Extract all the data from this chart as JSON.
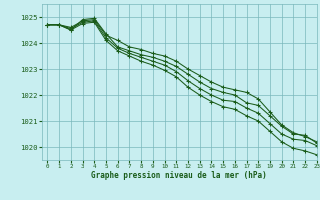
{
  "title": "Graphe pression niveau de la mer (hPa)",
  "bg_color": "#c8eef0",
  "grid_color": "#7ab8bc",
  "line_color": "#1a5c1a",
  "xlim": [
    -0.5,
    23
  ],
  "ylim": [
    1019.5,
    1025.5
  ],
  "yticks": [
    1020,
    1021,
    1022,
    1023,
    1024,
    1025
  ],
  "xticks": [
    0,
    1,
    2,
    3,
    4,
    5,
    6,
    7,
    8,
    9,
    10,
    11,
    12,
    13,
    14,
    15,
    16,
    17,
    18,
    19,
    20,
    21,
    22,
    23
  ],
  "series": [
    [
      1024.7,
      1024.7,
      1024.6,
      1024.85,
      1024.9,
      1024.3,
      1024.1,
      1023.85,
      1023.75,
      1023.6,
      1023.5,
      1023.3,
      1023.0,
      1022.75,
      1022.5,
      1022.3,
      1022.2,
      1022.1,
      1021.85,
      1021.35,
      1020.85,
      1020.55,
      1020.4,
      1020.2
    ],
    [
      1024.7,
      1024.7,
      1024.5,
      1024.9,
      1024.95,
      1024.35,
      1023.85,
      1023.7,
      1023.55,
      1023.45,
      1023.3,
      1023.1,
      1022.8,
      1022.5,
      1022.25,
      1022.1,
      1022.0,
      1021.7,
      1021.6,
      1021.2,
      1020.8,
      1020.5,
      1020.45,
      1020.15
    ],
    [
      1024.7,
      1024.7,
      1024.55,
      1024.8,
      1024.85,
      1024.2,
      1023.8,
      1023.6,
      1023.45,
      1023.3,
      1023.15,
      1022.9,
      1022.55,
      1022.25,
      1022.0,
      1021.8,
      1021.75,
      1021.5,
      1021.3,
      1020.9,
      1020.5,
      1020.3,
      1020.25,
      1020.05
    ],
    [
      1024.7,
      1024.7,
      1024.5,
      1024.75,
      1024.8,
      1024.1,
      1023.7,
      1023.5,
      1023.3,
      1023.15,
      1022.95,
      1022.7,
      1022.3,
      1022.0,
      1021.75,
      1021.55,
      1021.45,
      1021.2,
      1021.0,
      1020.6,
      1020.2,
      1019.95,
      1019.85,
      1019.7
    ]
  ]
}
